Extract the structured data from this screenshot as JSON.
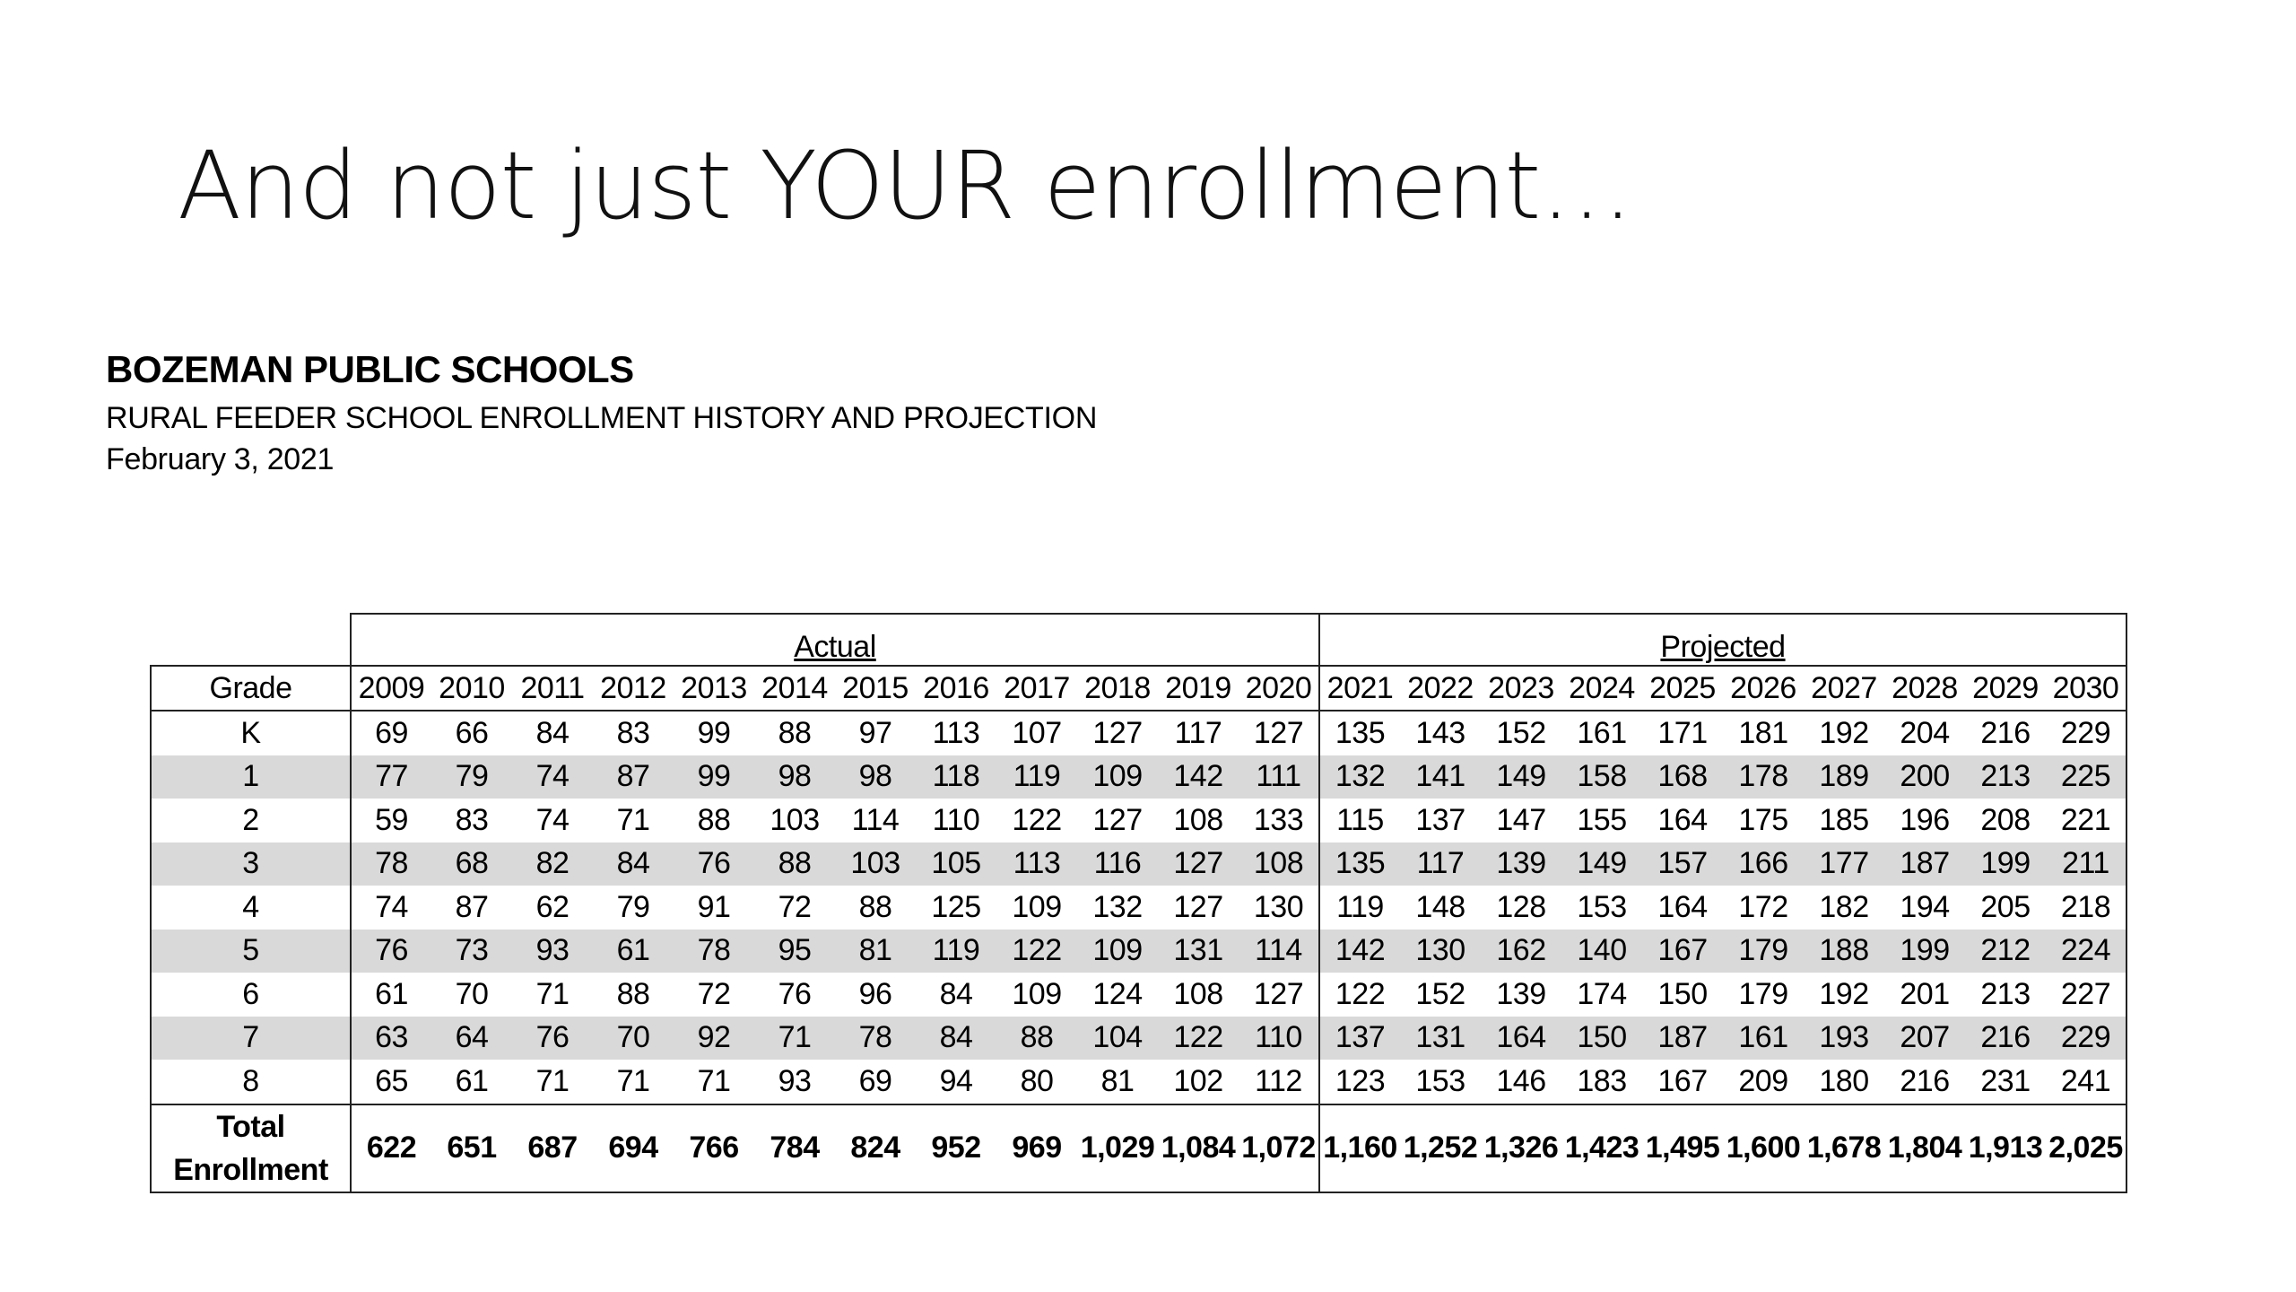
{
  "slide": {
    "title": "And not just YOUR enrollment…"
  },
  "report": {
    "org": "BOZEMAN PUBLIC SCHOOLS",
    "subtitle": "RURAL FEEDER SCHOOL ENROLLMENT HISTORY AND PROJECTION",
    "date": "February 3, 2021"
  },
  "table": {
    "actual_label": "Actual",
    "projected_label": "Projected",
    "grade_header": "Grade",
    "years": [
      "2009",
      "2010",
      "2011",
      "2012",
      "2013",
      "2014",
      "2015",
      "2016",
      "2017",
      "2018",
      "2019",
      "2020",
      "2021",
      "2022",
      "2023",
      "2024",
      "2025",
      "2026",
      "2027",
      "2028",
      "2029",
      "2030"
    ],
    "rows": [
      {
        "grade": "K",
        "values": [
          "69",
          "66",
          "84",
          "83",
          "99",
          "88",
          "97",
          "113",
          "107",
          "127",
          "117",
          "127",
          "135",
          "143",
          "152",
          "161",
          "171",
          "181",
          "192",
          "204",
          "216",
          "229"
        ]
      },
      {
        "grade": "1",
        "values": [
          "77",
          "79",
          "74",
          "87",
          "99",
          "98",
          "98",
          "118",
          "119",
          "109",
          "142",
          "111",
          "132",
          "141",
          "149",
          "158",
          "168",
          "178",
          "189",
          "200",
          "213",
          "225"
        ]
      },
      {
        "grade": "2",
        "values": [
          "59",
          "83",
          "74",
          "71",
          "88",
          "103",
          "114",
          "110",
          "122",
          "127",
          "108",
          "133",
          "115",
          "137",
          "147",
          "155",
          "164",
          "175",
          "185",
          "196",
          "208",
          "221"
        ]
      },
      {
        "grade": "3",
        "values": [
          "78",
          "68",
          "82",
          "84",
          "76",
          "88",
          "103",
          "105",
          "113",
          "116",
          "127",
          "108",
          "135",
          "117",
          "139",
          "149",
          "157",
          "166",
          "177",
          "187",
          "199",
          "211"
        ]
      },
      {
        "grade": "4",
        "values": [
          "74",
          "87",
          "62",
          "79",
          "91",
          "72",
          "88",
          "125",
          "109",
          "132",
          "127",
          "130",
          "119",
          "148",
          "128",
          "153",
          "164",
          "172",
          "182",
          "194",
          "205",
          "218"
        ]
      },
      {
        "grade": "5",
        "values": [
          "76",
          "73",
          "93",
          "61",
          "78",
          "95",
          "81",
          "119",
          "122",
          "109",
          "131",
          "114",
          "142",
          "130",
          "162",
          "140",
          "167",
          "179",
          "188",
          "199",
          "212",
          "224"
        ]
      },
      {
        "grade": "6",
        "values": [
          "61",
          "70",
          "71",
          "88",
          "72",
          "76",
          "96",
          "84",
          "109",
          "124",
          "108",
          "127",
          "122",
          "152",
          "139",
          "174",
          "150",
          "179",
          "192",
          "201",
          "213",
          "227"
        ]
      },
      {
        "grade": "7",
        "values": [
          "63",
          "64",
          "76",
          "70",
          "92",
          "71",
          "78",
          "84",
          "88",
          "104",
          "122",
          "110",
          "137",
          "131",
          "164",
          "150",
          "187",
          "161",
          "193",
          "207",
          "216",
          "229"
        ]
      },
      {
        "grade": "8",
        "values": [
          "65",
          "61",
          "71",
          "71",
          "71",
          "93",
          "69",
          "94",
          "80",
          "81",
          "102",
          "112",
          "123",
          "153",
          "146",
          "183",
          "167",
          "209",
          "180",
          "216",
          "231",
          "241"
        ]
      }
    ],
    "total": {
      "label_line1": "Total",
      "label_line2": "Enrollment",
      "values": [
        "622",
        "651",
        "687",
        "694",
        "766",
        "784",
        "824",
        "952",
        "969",
        "1,029",
        "1,084",
        "1,072",
        "1,160",
        "1,252",
        "1,326",
        "1,423",
        "1,495",
        "1,600",
        "1,678",
        "1,804",
        "1,913",
        "2,025"
      ]
    }
  }
}
